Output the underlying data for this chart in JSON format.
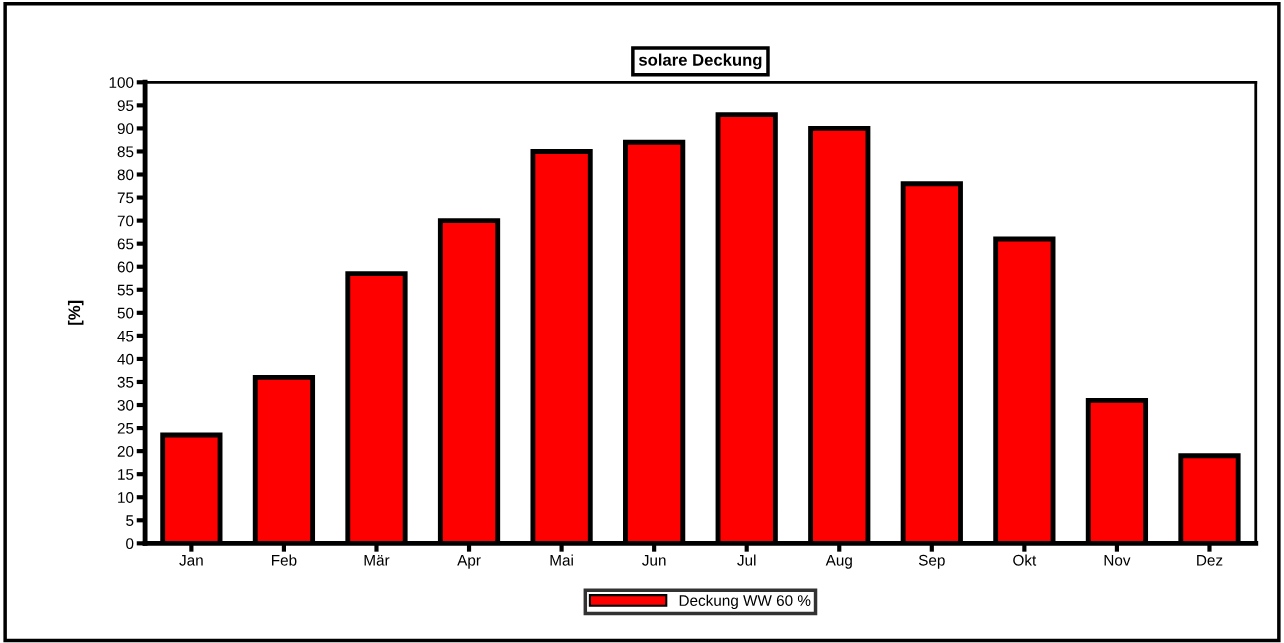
{
  "chart_data": {
    "type": "bar",
    "title": "solare Deckung",
    "ylabel": "[%]",
    "categories": [
      "Jan",
      "Feb",
      "Mär",
      "Apr",
      "Mai",
      "Jun",
      "Jul",
      "Aug",
      "Sep",
      "Okt",
      "Nov",
      "Dez"
    ],
    "series": [
      {
        "name": "Deckung WW 60 %",
        "color": "#ff0000",
        "values": [
          23.5,
          36,
          58.5,
          70,
          85,
          87,
          93,
          90,
          78,
          66,
          31,
          19
        ]
      }
    ],
    "ylim": [
      0,
      100
    ],
    "yticks": [
      0,
      5,
      10,
      15,
      20,
      25,
      30,
      35,
      40,
      45,
      50,
      55,
      60,
      65,
      70,
      75,
      80,
      85,
      90,
      95,
      100
    ],
    "grid": false,
    "legend": "bottom"
  }
}
